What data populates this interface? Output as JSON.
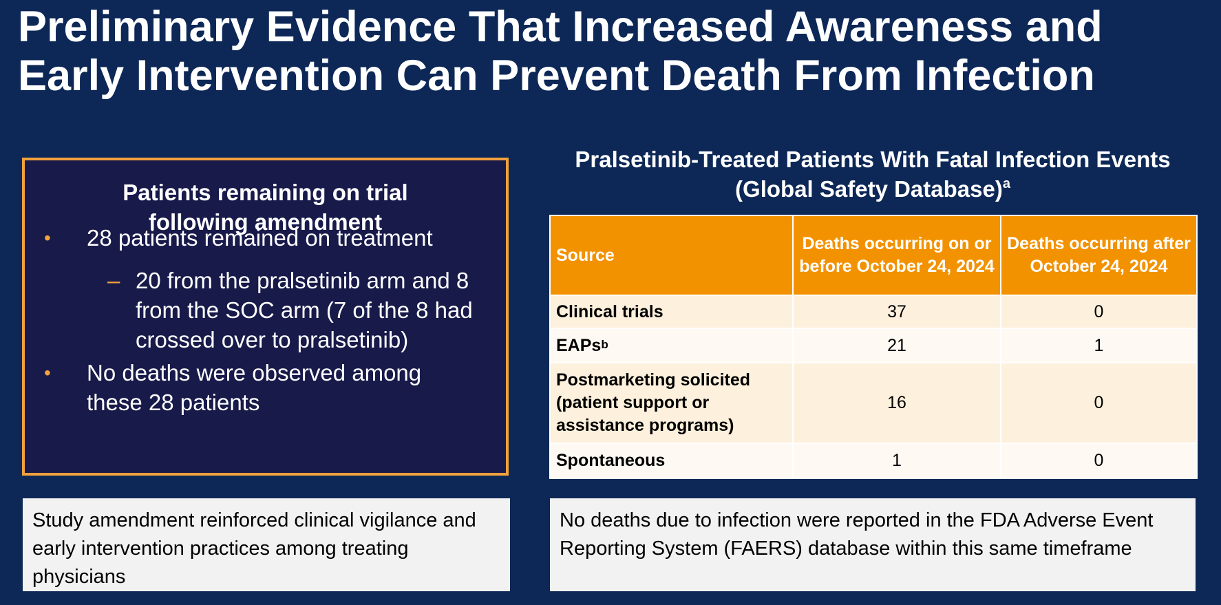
{
  "slide": {
    "title_line1": "Preliminary Evidence That Increased Awareness and",
    "title_line2": "Early Intervention Can Prevent Death From Infection"
  },
  "left_panel": {
    "heading_line1": "Patients remaining on trial",
    "heading_line2": "following amendment",
    "bullet_mark": "•",
    "dash_mark": "–",
    "bullet1": "28 patients remained on treatment",
    "sub_bullet": "20 from the pralsetinib arm and 8 from the SOC arm (7 of the 8 had crossed over to pralsetinib)",
    "bullet2": "No deaths were observed among these 28 patients"
  },
  "right_panel": {
    "heading_line1": "Pralsetinib-Treated Patients With Fatal Infection Events",
    "heading_line2": "(Global Safety Database)",
    "heading_sup": "a",
    "table": {
      "headers": [
        "Source",
        "Deaths occurring on or before October 24, 2024",
        "Deaths occurring after October 24, 2024"
      ],
      "rows": [
        {
          "source": "Clinical trials",
          "sup": "",
          "before": "37",
          "after": "0"
        },
        {
          "source": "EAPs",
          "sup": "b",
          "before": "21",
          "after": "1"
        },
        {
          "source": "Postmarketing solicited (patient support or assistance programs)",
          "sup": "",
          "before": "16",
          "after": "0"
        },
        {
          "source": "Spontaneous",
          "sup": "",
          "before": "1",
          "after": "0"
        }
      ]
    }
  },
  "notes": {
    "left": "Study amendment reinforced clinical vigilance and early intervention practices among treating physicians",
    "right": "No deaths due to infection were reported in the FDA Adverse Event Reporting System (FAERS) database within this same timeframe"
  }
}
